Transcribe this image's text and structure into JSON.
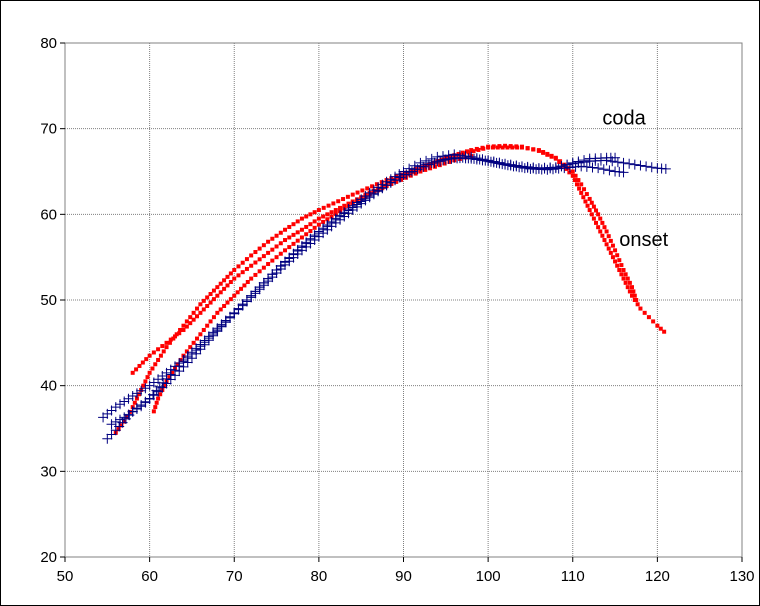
{
  "chart_data": {
    "type": "scatter",
    "title": "",
    "xlabel": "",
    "ylabel": "",
    "xlim": [
      50,
      130
    ],
    "ylim": [
      20,
      80
    ],
    "xticks": [
      50,
      60,
      70,
      80,
      90,
      100,
      110,
      120,
      130
    ],
    "yticks": [
      20,
      30,
      40,
      50,
      60,
      70,
      80
    ],
    "grid": true,
    "legend": "none",
    "annotations": [
      {
        "text": "coda",
        "x": 113.5,
        "y": 70.5
      },
      {
        "text": "onset",
        "x": 115.5,
        "y": 56.3
      }
    ],
    "series": [
      {
        "marker": "square",
        "color": "#ff0000",
        "curves": [
          [
            [
              58,
              41.5
            ],
            [
              60,
              43.5
            ],
            [
              62,
              45
            ],
            [
              64,
              46.5
            ],
            [
              66,
              48.5
            ],
            [
              68,
              50.5
            ],
            [
              70,
              52.5
            ],
            [
              72,
              54
            ],
            [
              74,
              55.5
            ],
            [
              76,
              57
            ],
            [
              78,
              58.2
            ],
            [
              80,
              59.5
            ],
            [
              82,
              60.5
            ],
            [
              84,
              61.5
            ],
            [
              86,
              62.5
            ],
            [
              88,
              63.5
            ],
            [
              90,
              64.5
            ],
            [
              92,
              65.4
            ],
            [
              94,
              66.2
            ],
            [
              96,
              66.9
            ],
            [
              98,
              67.5
            ],
            [
              100,
              67.9
            ],
            [
              102,
              68
            ],
            [
              104,
              67.9
            ],
            [
              106,
              67.4
            ],
            [
              108,
              66.5
            ],
            [
              110,
              64.5
            ],
            [
              111,
              62.5
            ],
            [
              112,
              60.5
            ],
            [
              113,
              58.5
            ],
            [
              114,
              56.5
            ],
            [
              115,
              54.5
            ],
            [
              116,
              52.5
            ],
            [
              117,
              50.5
            ],
            [
              118,
              49
            ],
            [
              119,
              48
            ],
            [
              120,
              47
            ],
            [
              120.8,
              46.3
            ]
          ],
          [
            [
              56,
              34.5
            ],
            [
              57,
              35.8
            ],
            [
              58,
              37.5
            ],
            [
              59,
              39.5
            ],
            [
              60,
              41.5
            ],
            [
              62,
              44.5
            ],
            [
              64,
              47
            ],
            [
              66,
              49.5
            ],
            [
              68,
              51.5
            ],
            [
              70,
              53.5
            ],
            [
              72,
              55.2
            ],
            [
              74,
              56.8
            ],
            [
              76,
              58.2
            ],
            [
              78,
              59.5
            ],
            [
              80,
              60.5
            ],
            [
              84,
              62.3
            ],
            [
              88,
              64
            ],
            [
              92,
              65.5
            ],
            [
              96,
              66.8
            ],
            [
              100,
              67.8
            ],
            [
              104,
              67.8
            ],
            [
              106,
              67.5
            ],
            [
              108,
              66.6
            ],
            [
              110,
              65
            ],
            [
              111,
              63.5
            ],
            [
              112,
              61.8
            ],
            [
              113,
              60
            ],
            [
              114,
              58
            ],
            [
              115,
              55.8
            ],
            [
              116,
              53.5
            ],
            [
              117,
              51.5
            ],
            [
              117.5,
              50
            ]
          ],
          [
            [
              60.5,
              37
            ],
            [
              61,
              38.5
            ],
            [
              62,
              40.5
            ],
            [
              64,
              43.5
            ],
            [
              66,
              46
            ],
            [
              68,
              48.5
            ],
            [
              70,
              50.5
            ],
            [
              72,
              52.5
            ],
            [
              74,
              54.2
            ],
            [
              76,
              55.8
            ],
            [
              78,
              57.3
            ],
            [
              80,
              58.8
            ],
            [
              84,
              61.3
            ],
            [
              88,
              63.3
            ],
            [
              92,
              65
            ],
            [
              96,
              66.3
            ],
            [
              98,
              66.8
            ]
          ]
        ]
      },
      {
        "marker": "plus",
        "color": "#000080",
        "curves": [
          [
            [
              54.5,
              36.3
            ],
            [
              56,
              37.5
            ],
            [
              58,
              38.8
            ],
            [
              60,
              40
            ],
            [
              62,
              41.5
            ],
            [
              64,
              43
            ],
            [
              66,
              44.8
            ],
            [
              68,
              46.7
            ],
            [
              70,
              48.5
            ],
            [
              72,
              50.5
            ],
            [
              74,
              52.5
            ],
            [
              76,
              54.5
            ],
            [
              78,
              56.3
            ],
            [
              80,
              58
            ],
            [
              82,
              59.5
            ],
            [
              84,
              61
            ],
            [
              86,
              62.5
            ],
            [
              88,
              63.8
            ],
            [
              90,
              65
            ],
            [
              92,
              66
            ],
            [
              94,
              66.7
            ],
            [
              96,
              67
            ],
            [
              98,
              66.7
            ],
            [
              100,
              66.3
            ],
            [
              102,
              65.9
            ],
            [
              104,
              65.6
            ],
            [
              106,
              65.4
            ],
            [
              108,
              65.5
            ],
            [
              110,
              65.9
            ],
            [
              112,
              66.2
            ],
            [
              114,
              66.3
            ],
            [
              116,
              66
            ],
            [
              118,
              65.7
            ],
            [
              120,
              65.4
            ],
            [
              121,
              65.3
            ]
          ],
          [
            [
              55,
              33.8
            ],
            [
              56,
              34.8
            ],
            [
              58,
              37
            ],
            [
              60,
              38.5
            ],
            [
              62,
              40.8
            ],
            [
              64,
              42.8
            ],
            [
              66,
              44.6
            ],
            [
              68,
              46.5
            ],
            [
              70,
              48.4
            ],
            [
              72,
              50.3
            ],
            [
              74,
              52.2
            ],
            [
              76,
              54.1
            ],
            [
              78,
              55.8
            ],
            [
              80,
              57.4
            ],
            [
              82,
              59
            ],
            [
              84,
              60.5
            ],
            [
              86,
              62
            ],
            [
              88,
              63.4
            ],
            [
              90,
              64.6
            ],
            [
              92,
              65.6
            ],
            [
              94,
              66.2
            ],
            [
              96,
              66.6
            ],
            [
              98,
              66.5
            ],
            [
              100,
              66.2
            ],
            [
              102,
              65.8
            ],
            [
              104,
              65.5
            ],
            [
              106,
              65.3
            ],
            [
              108,
              65.4
            ],
            [
              110,
              66
            ],
            [
              112,
              66.5
            ],
            [
              114,
              66.6
            ],
            [
              115,
              66.6
            ]
          ],
          [
            [
              55.5,
              35.5
            ],
            [
              57,
              36.3
            ],
            [
              59,
              37.6
            ],
            [
              61,
              39.3
            ],
            [
              63,
              41.2
            ],
            [
              65,
              43.2
            ],
            [
              67,
              45.3
            ],
            [
              69,
              47.4
            ],
            [
              71,
              49.5
            ],
            [
              73,
              51.5
            ],
            [
              75,
              53.5
            ],
            [
              77,
              55.3
            ],
            [
              79,
              57
            ],
            [
              81,
              58.6
            ],
            [
              83,
              60.1
            ],
            [
              85,
              61.5
            ],
            [
              87,
              62.8
            ],
            [
              89,
              64
            ],
            [
              91,
              65
            ],
            [
              93,
              65.8
            ],
            [
              95,
              66.4
            ],
            [
              97,
              66.6
            ],
            [
              99,
              66.4
            ],
            [
              101,
              66
            ],
            [
              103,
              65.6
            ],
            [
              105,
              65.3
            ],
            [
              107,
              65.2
            ],
            [
              109,
              65.4
            ],
            [
              111,
              65.6
            ],
            [
              113,
              65.4
            ],
            [
              115,
              65
            ],
            [
              116,
              64.9
            ]
          ]
        ]
      }
    ]
  }
}
